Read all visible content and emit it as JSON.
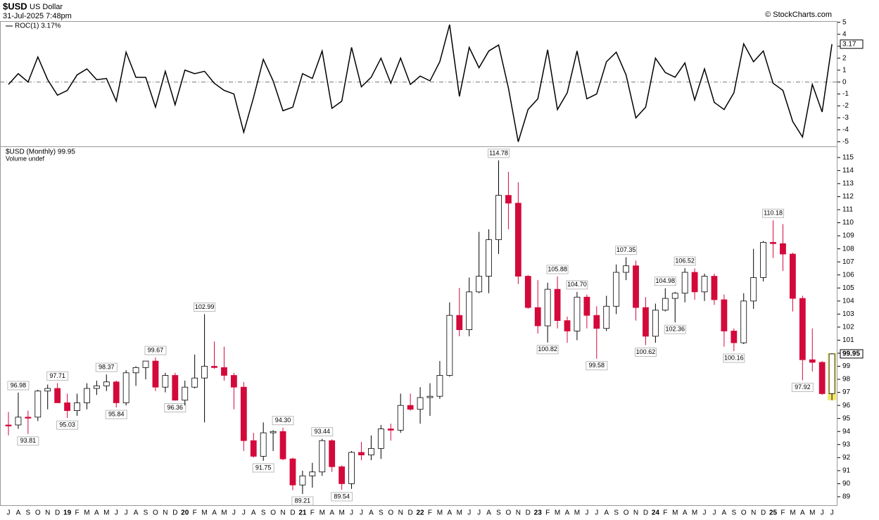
{
  "header": {
    "symbol": "$USD",
    "name": "US Dollar",
    "date": "31-Jul-2025 7:48pm",
    "source": "© StockCharts.com"
  },
  "chart_data": [
    {
      "type": "line",
      "legend": "ROC(1) 3.17%",
      "color": "#000000",
      "zero_line": true,
      "values": [
        -0.2,
        0.7,
        0,
        2.1,
        0.2,
        -1.1,
        -0.7,
        0.6,
        1.1,
        0.2,
        0.3,
        -1.6,
        2.5,
        0.4,
        0.4,
        -2.1,
        0.9,
        -1.9,
        1.0,
        0.7,
        0.9,
        -0.1,
        -0.7,
        -1.0,
        -4.2,
        -1.3,
        1.9,
        0.1,
        -2.4,
        -2.1,
        0.7,
        0.3,
        2.6,
        -2.2,
        -1.6,
        2.9,
        -0.4,
        0.4,
        2.0,
        -0.1,
        2.0,
        -0.2,
        0.5,
        0.1,
        1.7,
        4.8,
        -1.2,
        2.9,
        1.2,
        2.6,
        3.1,
        -0.5,
        -5.0,
        -2.3,
        -1.4,
        2.7,
        -2.3,
        -0.9,
        2.6,
        -1.4,
        -1.0,
        1.7,
        2.5,
        0.6,
        -3.0,
        -2.1,
        2.0,
        0.8,
        0.4,
        1.6,
        -1.5,
        1.1,
        -1.7,
        -2.3,
        -0.9,
        3.2,
        1.7,
        2.6,
        -0.1,
        -0.7,
        -3.3,
        -4.6,
        -0.2,
        -2.5,
        3.17
      ],
      "last_value_label": "3.17",
      "ylim": [
        -5.44,
        5.1
      ],
      "yticks": [
        5,
        4,
        3,
        2,
        1,
        0,
        -1,
        -2,
        -3,
        -4,
        -5
      ]
    },
    {
      "type": "candlestick",
      "legend": "$USD (Monthly) 99.95",
      "volume_note": "Volume undef",
      "up_color": "#ffffff",
      "down_color": "#d4093b",
      "highlight_color": "#f2e66a",
      "categories": [
        "J",
        "A",
        "S",
        "O",
        "N",
        "D",
        "19",
        "F",
        "M",
        "A",
        "M",
        "J",
        "J",
        "A",
        "S",
        "O",
        "N",
        "D",
        "20",
        "F",
        "M",
        "A",
        "M",
        "J",
        "J",
        "A",
        "S",
        "O",
        "N",
        "D",
        "21",
        "F",
        "M",
        "A",
        "M",
        "J",
        "J",
        "A",
        "S",
        "O",
        "N",
        "D",
        "22",
        "F",
        "M",
        "A",
        "M",
        "J",
        "J",
        "A",
        "S",
        "O",
        "N",
        "D",
        "23",
        "F",
        "M",
        "A",
        "M",
        "J",
        "J",
        "A",
        "S",
        "O",
        "N",
        "D",
        "24",
        "F",
        "M",
        "A",
        "M",
        "J",
        "J",
        "A",
        "S",
        "O",
        "N",
        "D",
        "25",
        "F",
        "M",
        "A",
        "M",
        "J",
        "J"
      ],
      "open": [
        94.5,
        94.5,
        95.1,
        95.1,
        97.1,
        97.3,
        96.2,
        95.6,
        96.2,
        97.3,
        97.5,
        97.8,
        96.2,
        98.5,
        98.9,
        99.4,
        97.4,
        98.3,
        96.4,
        97.4,
        98.1,
        99.0,
        98.9,
        98.3,
        97.4,
        93.3,
        92.1,
        93.9,
        94.0,
        91.9,
        89.9,
        90.6,
        90.9,
        93.3,
        91.3,
        90.0,
        92.4,
        92.2,
        92.7,
        94.2,
        94.1,
        96.0,
        95.7,
        96.6,
        96.7,
        98.3,
        102.9,
        101.8,
        104.7,
        105.9,
        108.7,
        112.1,
        111.5,
        105.9,
        103.5,
        102.1,
        104.9,
        102.5,
        101.7,
        104.3,
        102.9,
        101.9,
        103.6,
        106.2,
        106.7,
        103.5,
        101.3,
        103.3,
        104.2,
        104.6,
        106.2,
        104.7,
        105.9,
        104.1,
        101.7,
        100.8,
        104.0,
        105.8,
        108.5,
        108.4,
        107.6,
        104.2,
        99.5,
        99.3,
        96.9
      ],
      "high": [
        95.5,
        96.98,
        95.6,
        97.2,
        97.6,
        97.71,
        96.9,
        96.9,
        97.7,
        97.9,
        98.37,
        97.9,
        98.7,
        99.0,
        99.4,
        99.67,
        98.5,
        98.5,
        97.9,
        99.9,
        102.99,
        100.9,
        100.5,
        98.5,
        97.8,
        93.9,
        94.7,
        94.1,
        94.3,
        92.0,
        91.0,
        91.6,
        93.44,
        93.4,
        91.4,
        92.5,
        93.2,
        93.7,
        94.5,
        94.6,
        96.9,
        96.9,
        97.4,
        97.7,
        99.4,
        103.9,
        105.0,
        105.8,
        109.3,
        109.5,
        114.78,
        113.9,
        113.1,
        106.0,
        105.6,
        105.4,
        105.88,
        102.8,
        104.7,
        104.5,
        103.6,
        104.4,
        106.8,
        107.35,
        107.1,
        104.3,
        103.8,
        104.98,
        104.7,
        106.52,
        106.5,
        106.1,
        106.1,
        104.5,
        101.9,
        104.6,
        108.0,
        108.6,
        110.18,
        109.9,
        107.7,
        104.4,
        101.9,
        99.4,
        100.0
      ],
      "low": [
        93.7,
        94.2,
        93.81,
        94.8,
        95.7,
        96.2,
        95.03,
        95.2,
        95.7,
        96.8,
        97.1,
        95.84,
        96.0,
        97.5,
        98.0,
        97.1,
        97.0,
        96.36,
        96.0,
        97.3,
        94.7,
        98.8,
        97.9,
        95.7,
        92.5,
        92.0,
        91.75,
        92.5,
        91.8,
        89.5,
        89.21,
        89.7,
        90.6,
        90.9,
        89.54,
        89.6,
        91.8,
        91.8,
        91.9,
        93.3,
        93.9,
        95.6,
        94.6,
        95.2,
        96.5,
        98.2,
        101.3,
        101.3,
        104.6,
        104.6,
        107.6,
        109.5,
        105.3,
        103.4,
        101.5,
        100.82,
        101.9,
        100.8,
        101.0,
        101.9,
        99.58,
        101.7,
        103.0,
        105.6,
        102.5,
        100.62,
        100.8,
        103.2,
        102.36,
        103.9,
        104.1,
        104.0,
        103.7,
        100.5,
        100.16,
        100.7,
        103.4,
        105.5,
        107.3,
        106.3,
        103.2,
        97.92,
        98.6,
        96.8,
        96.4
      ],
      "close": [
        94.5,
        95.1,
        95.1,
        97.1,
        97.3,
        96.2,
        95.6,
        96.2,
        97.3,
        97.5,
        97.8,
        96.2,
        98.5,
        98.9,
        99.4,
        97.4,
        98.3,
        96.4,
        97.4,
        98.1,
        99.0,
        98.9,
        98.3,
        97.4,
        93.3,
        92.1,
        93.9,
        94.0,
        91.9,
        89.9,
        90.6,
        90.9,
        93.3,
        91.3,
        90.0,
        92.4,
        92.2,
        92.7,
        94.2,
        94.1,
        96.0,
        95.7,
        96.6,
        96.7,
        98.3,
        102.9,
        101.8,
        104.7,
        105.9,
        108.7,
        112.1,
        111.5,
        105.9,
        103.5,
        102.1,
        104.9,
        102.5,
        101.7,
        104.3,
        102.9,
        101.9,
        103.6,
        106.2,
        106.7,
        103.5,
        101.3,
        103.3,
        104.2,
        104.6,
        106.2,
        104.7,
        105.9,
        104.1,
        101.7,
        100.8,
        104.0,
        105.8,
        108.5,
        108.4,
        107.6,
        104.2,
        99.5,
        99.3,
        96.9,
        99.95
      ],
      "high_labels": [
        null,
        "96.98",
        null,
        null,
        null,
        "97.71",
        null,
        null,
        null,
        null,
        "98.37",
        null,
        null,
        null,
        null,
        "99.67",
        null,
        null,
        null,
        null,
        "102.99",
        null,
        null,
        null,
        null,
        null,
        null,
        null,
        "94.30",
        null,
        null,
        null,
        "93.44",
        null,
        null,
        null,
        null,
        null,
        null,
        null,
        null,
        null,
        null,
        null,
        null,
        null,
        null,
        null,
        null,
        null,
        "114.78",
        null,
        null,
        null,
        null,
        null,
        "105.88",
        null,
        "104.70",
        null,
        null,
        null,
        null,
        "107.35",
        null,
        null,
        null,
        "104.98",
        null,
        "106.52",
        null,
        null,
        null,
        null,
        null,
        null,
        null,
        null,
        "110.18",
        null,
        null,
        null,
        null,
        null,
        null
      ],
      "low_labels": [
        null,
        null,
        "93.81",
        null,
        null,
        null,
        "95.03",
        null,
        null,
        null,
        null,
        "95.84",
        null,
        null,
        null,
        null,
        null,
        "96.36",
        null,
        null,
        null,
        null,
        null,
        null,
        null,
        null,
        "91.75",
        null,
        null,
        null,
        "89.21",
        null,
        null,
        null,
        "89.54",
        null,
        null,
        null,
        null,
        null,
        null,
        null,
        null,
        null,
        null,
        null,
        null,
        null,
        null,
        null,
        null,
        null,
        null,
        null,
        null,
        "100.82",
        null,
        null,
        null,
        null,
        "99.58",
        null,
        null,
        null,
        null,
        "100.62",
        null,
        null,
        "102.36",
        null,
        null,
        null,
        null,
        null,
        "100.16",
        null,
        null,
        null,
        null,
        null,
        null,
        "97.92",
        null,
        null,
        null
      ],
      "last_value_label": "99.95",
      "ylim": [
        88.35,
        115.8
      ],
      "yticks": [
        89,
        90,
        91,
        92,
        93,
        94,
        95,
        96,
        97,
        98,
        99,
        100,
        101,
        102,
        103,
        104,
        105,
        106,
        107,
        108,
        109,
        110,
        111,
        112,
        113,
        114,
        115
      ]
    }
  ]
}
